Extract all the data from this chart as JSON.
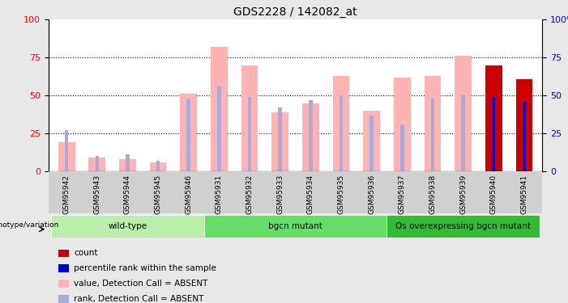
{
  "title": "GDS2228 / 142082_at",
  "samples": [
    "GSM95942",
    "GSM95943",
    "GSM95944",
    "GSM95945",
    "GSM95946",
    "GSM95931",
    "GSM95932",
    "GSM95933",
    "GSM95934",
    "GSM95935",
    "GSM95936",
    "GSM95937",
    "GSM95938",
    "GSM95939",
    "GSM95940",
    "GSM95941"
  ],
  "value_absent": [
    19,
    9,
    8,
    6,
    51,
    82,
    70,
    39,
    45,
    63,
    40,
    62,
    63,
    76,
    0,
    0
  ],
  "rank_absent": [
    27,
    10,
    11,
    7,
    48,
    56,
    49,
    42,
    47,
    50,
    37,
    31,
    48,
    50,
    0,
    0
  ],
  "count": [
    0,
    0,
    0,
    0,
    0,
    0,
    0,
    0,
    0,
    0,
    0,
    0,
    0,
    0,
    70,
    61
  ],
  "percentile": [
    0,
    0,
    0,
    0,
    0,
    0,
    0,
    0,
    0,
    0,
    0,
    0,
    0,
    0,
    49,
    46
  ],
  "groups": [
    {
      "label": "wild-type",
      "start": 0,
      "end": 5,
      "color": "#bbeeaa"
    },
    {
      "label": "bgcn mutant",
      "start": 5,
      "end": 11,
      "color": "#66dd66"
    },
    {
      "label": "Os overexpressing bgcn mutant",
      "start": 11,
      "end": 16,
      "color": "#33bb33"
    }
  ],
  "color_value_absent": "#ffb3b3",
  "color_rank_absent": "#aaaadd",
  "color_count": "#cc0000",
  "color_percentile": "#0000cc",
  "ylim": [
    0,
    100
  ],
  "yticks": [
    0,
    25,
    50,
    75,
    100
  ],
  "background_color": "#e8e8e8",
  "plot_bg": "#ffffff",
  "tick_bg": "#d0d0d0"
}
